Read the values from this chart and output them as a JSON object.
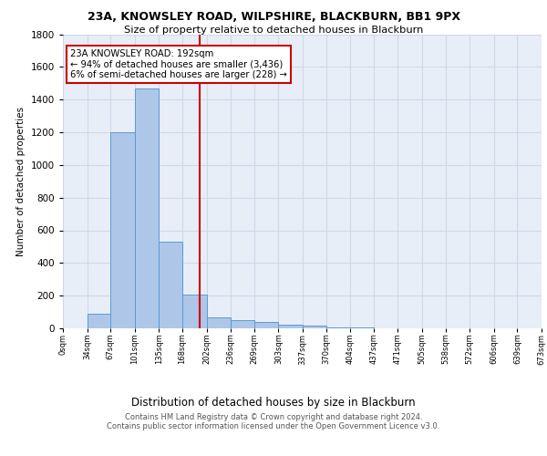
{
  "title1": "23A, KNOWSLEY ROAD, WILPSHIRE, BLACKBURN, BB1 9PX",
  "title2": "Size of property relative to detached houses in Blackburn",
  "xlabel": "Distribution of detached houses by size in Blackburn",
  "ylabel": "Number of detached properties",
  "footnote1": "Contains HM Land Registry data © Crown copyright and database right 2024.",
  "footnote2": "Contains public sector information licensed under the Open Government Licence v3.0.",
  "bar_edges": [
    0,
    34,
    67,
    101,
    135,
    168,
    202,
    236,
    269,
    303,
    337,
    370,
    404,
    437,
    471,
    505,
    538,
    572,
    606,
    639,
    673
  ],
  "bar_heights": [
    0,
    91,
    1200,
    1470,
    530,
    205,
    65,
    48,
    40,
    22,
    15,
    8,
    5,
    0,
    0,
    0,
    0,
    0,
    0,
    0
  ],
  "bar_color": "#aec6e8",
  "bar_edgecolor": "#5b9bd5",
  "property_value": 192,
  "vline_color": "#cc0000",
  "annotation_text": "23A KNOWSLEY ROAD: 192sqm\n← 94% of detached houses are smaller (3,436)\n6% of semi-detached houses are larger (228) →",
  "annotation_box_edgecolor": "#cc0000",
  "annotation_box_facecolor": "#ffffff",
  "ylim": [
    0,
    1800
  ],
  "xlim": [
    0,
    673
  ],
  "tick_labels": [
    "0sqm",
    "34sqm",
    "67sqm",
    "101sqm",
    "135sqm",
    "168sqm",
    "202sqm",
    "236sqm",
    "269sqm",
    "303sqm",
    "337sqm",
    "370sqm",
    "404sqm",
    "437sqm",
    "471sqm",
    "505sqm",
    "538sqm",
    "572sqm",
    "606sqm",
    "639sqm",
    "673sqm"
  ],
  "yticks": [
    0,
    200,
    400,
    600,
    800,
    1000,
    1200,
    1400,
    1600,
    1800
  ],
  "grid_color": "#d0d8e8",
  "background_color": "#e8eef8"
}
